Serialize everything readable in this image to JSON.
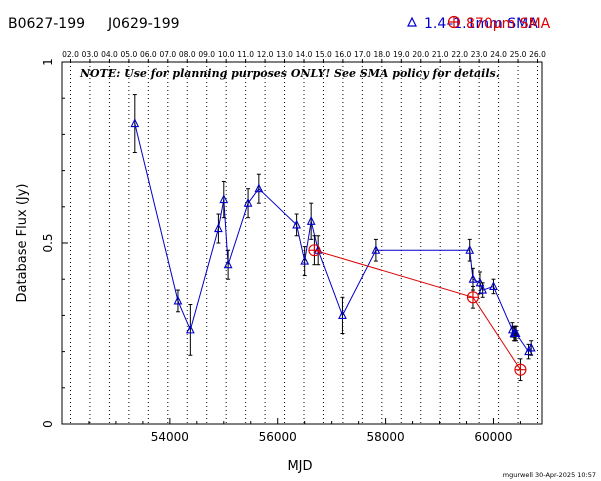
{
  "header": {
    "source_name": "B0627-199",
    "source_alias": "J0629-199",
    "legend_band1": "1.4–1.1mm SMA",
    "legend_band2": "870µm SMA",
    "color_band1": "#0000cc",
    "color_band2": "#dd0000"
  },
  "note": "NOTE: Use for planning purposes ONLY!  See SMA policy for details.",
  "footer": "mgurwell 30-Apr-2025 10:57",
  "chart_data": {
    "type": "scatter",
    "xlabel": "MJD",
    "ylabel": "Database Flux (Jy)",
    "xlim": [
      52000,
      60900
    ],
    "ylim": [
      0,
      1
    ],
    "x_ticks": [
      54000,
      56000,
      58000,
      60000
    ],
    "y_ticks": [
      0,
      0.5,
      1
    ],
    "top_ticks": [
      "02.0",
      "03.0",
      "04.0",
      "05.0",
      "06.0",
      "07.0",
      "08.0",
      "09.0",
      "10.0",
      "11.0",
      "12.0",
      "13.0",
      "14.0",
      "15.0",
      "16.0",
      "17.0",
      "18.0",
      "19.0",
      "20.0",
      "21.0",
      "22.0",
      "23.0",
      "24.0",
      "25.0",
      "26.0"
    ],
    "grid": "vertical-dotted",
    "series": [
      {
        "name": "1.4–1.1mm SMA",
        "marker": "triangle",
        "x": [
          53350,
          54150,
          54380,
          54900,
          55000,
          55080,
          55450,
          55650,
          56350,
          56500,
          56620,
          56750,
          57200,
          57820,
          59560,
          59620,
          59750,
          59800,
          60000,
          60350,
          60380,
          60400,
          60420,
          60650,
          60700
        ],
        "y": [
          0.83,
          0.34,
          0.26,
          0.54,
          0.62,
          0.44,
          0.61,
          0.65,
          0.55,
          0.45,
          0.56,
          0.48,
          0.3,
          0.48,
          0.48,
          0.4,
          0.39,
          0.37,
          0.38,
          0.26,
          0.25,
          0.25,
          0.25,
          0.2,
          0.21
        ],
        "yerr": [
          0.08,
          0.03,
          0.07,
          0.04,
          0.05,
          0.04,
          0.04,
          0.04,
          0.03,
          0.04,
          0.05,
          0.04,
          0.05,
          0.03,
          0.03,
          0.03,
          0.03,
          0.02,
          0.02,
          0.02,
          0.02,
          0.02,
          0.02,
          0.02,
          0.02
        ]
      },
      {
        "name": "870µm SMA",
        "marker": "circle-plus",
        "x": [
          56680,
          59620,
          60500
        ],
        "y": [
          0.48,
          0.35,
          0.15
        ],
        "yerr": [
          0.04,
          0.03,
          0.03
        ]
      }
    ]
  }
}
